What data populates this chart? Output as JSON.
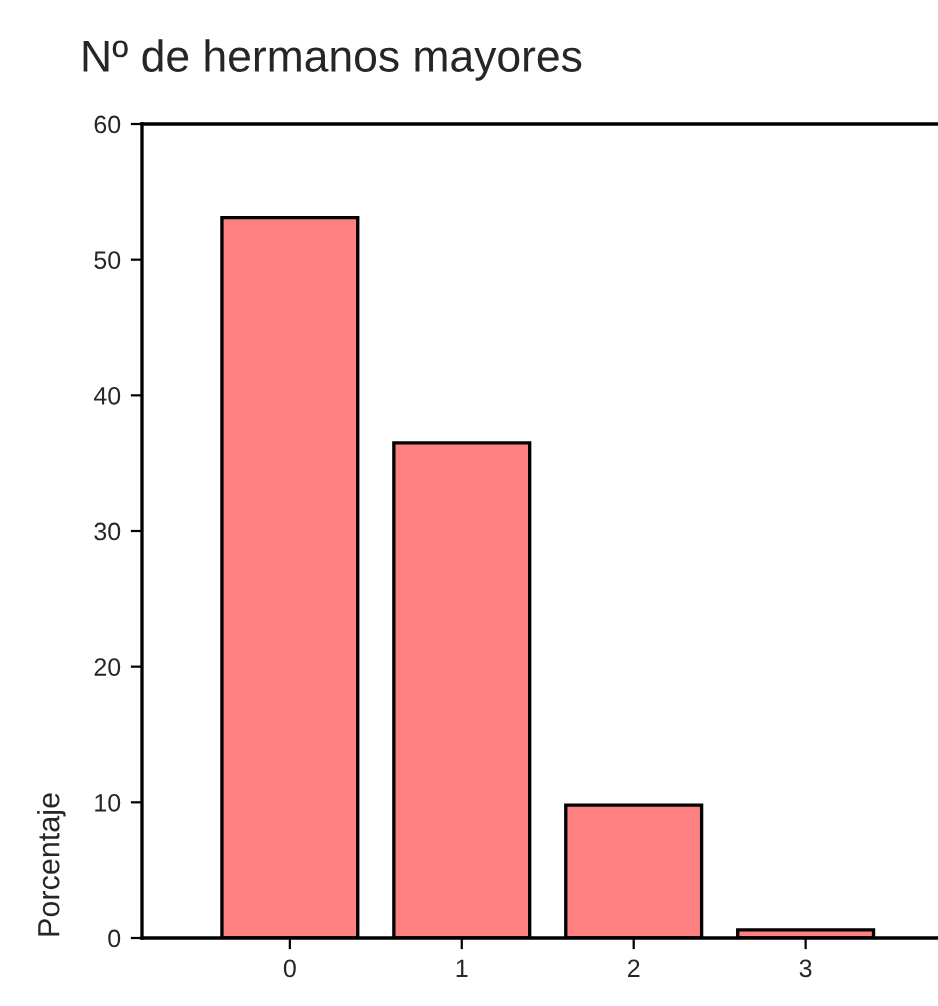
{
  "chart_data": {
    "type": "bar",
    "title": "Nº de hermanos mayores",
    "ylabel": "Porcentaje",
    "categories": [
      "0",
      "1",
      "2",
      "3"
    ],
    "values": [
      53.1,
      36.5,
      9.8,
      0.6
    ],
    "color": "#ff8080",
    "ylim": [
      0,
      60
    ],
    "yticks": [
      0,
      10,
      20,
      30,
      40,
      50,
      60
    ],
    "grid": false,
    "legend": false
  }
}
